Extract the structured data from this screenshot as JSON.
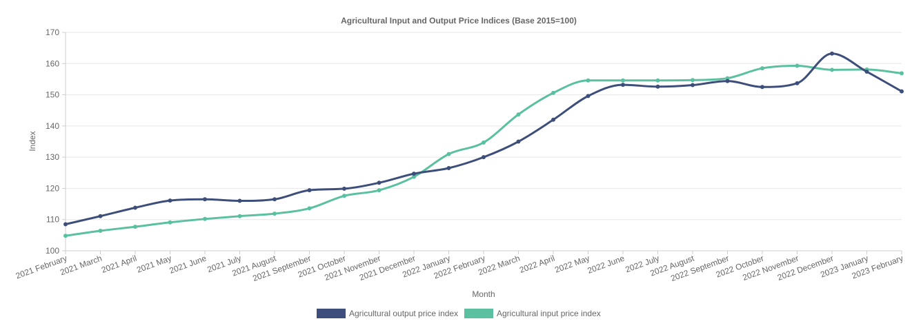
{
  "chart_data": {
    "type": "line",
    "title": "Agricultural Input and Output Price Indices (Base 2015=100)",
    "xlabel": "Month",
    "ylabel": "Index",
    "ylim": [
      100,
      170
    ],
    "yticks": [
      100,
      110,
      120,
      130,
      140,
      150,
      160,
      170
    ],
    "grid": true,
    "legend_position": "bottom",
    "categories": [
      "2021 February",
      "2021 March",
      "2021 April",
      "2021 May",
      "2021 June",
      "2021 July",
      "2021 August",
      "2021 September",
      "2021 October",
      "2021 November",
      "2021 December",
      "2022 January",
      "2022 February",
      "2022 March",
      "2022 April",
      "2022 May",
      "2022 June",
      "2022 July",
      "2022 August",
      "2022 September",
      "2022 October",
      "2022 November",
      "2022 December",
      "2023 January",
      "2023 February"
    ],
    "series": [
      {
        "name": "Agricultural output price index",
        "color": "#3d4e7a",
        "values": [
          108.5,
          111.1,
          113.8,
          116.1,
          116.5,
          116.0,
          116.5,
          119.4,
          119.9,
          121.8,
          124.7,
          126.5,
          130.0,
          135.0,
          142.0,
          149.6,
          153.2,
          152.6,
          153.1,
          154.4,
          152.5,
          153.7,
          163.2,
          157.4,
          151.1
        ]
      },
      {
        "name": "Agricultural input price index",
        "color": "#5ac0a0",
        "values": [
          104.8,
          106.4,
          107.7,
          109.1,
          110.2,
          111.1,
          111.9,
          113.6,
          117.6,
          119.4,
          123.7,
          131.0,
          134.7,
          143.7,
          150.6,
          154.6,
          154.6,
          154.6,
          154.7,
          155.3,
          158.5,
          159.3,
          158.0,
          158.1,
          156.9
        ]
      }
    ]
  }
}
